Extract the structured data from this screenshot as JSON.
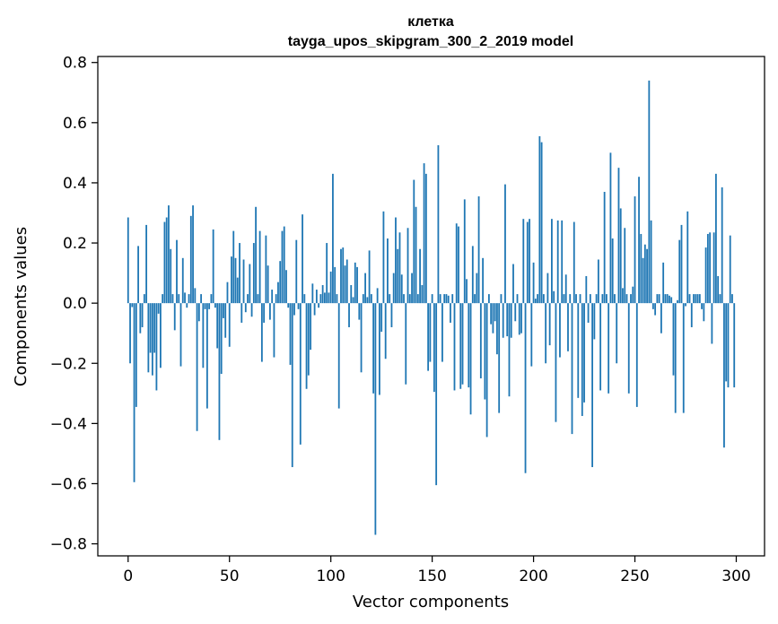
{
  "chart_data": {
    "type": "bar",
    "title": "клетка",
    "subtitle": "tayga_upos_skipgram_300_2_2019 model",
    "xlabel": "Vector components",
    "ylabel": "Components values",
    "xlim": [
      -14.95,
      313.95
    ],
    "ylim": [
      -0.84,
      0.82
    ],
    "xticks": [
      0,
      50,
      100,
      150,
      200,
      250,
      300
    ],
    "xtick_labels": [
      "0",
      "50",
      "100",
      "150",
      "200",
      "250",
      "300"
    ],
    "yticks": [
      -0.8,
      -0.6,
      -0.4,
      -0.2,
      0.0,
      0.2,
      0.4,
      0.6,
      0.8
    ],
    "ytick_labels": [
      "−0.8",
      "−0.6",
      "−0.4",
      "−0.2",
      "0.0",
      "0.2",
      "0.4",
      "0.6",
      "0.8"
    ],
    "grid": false,
    "bar_color": "#1f77b4",
    "x": [
      0,
      1,
      2,
      3,
      4,
      5,
      6,
      7,
      8,
      9,
      10,
      11,
      12,
      13,
      14,
      15,
      16,
      17,
      18,
      19,
      20,
      21,
      22,
      23,
      24,
      25,
      26,
      27,
      28,
      29,
      30,
      31,
      32,
      33,
      34,
      35,
      36,
      37,
      38,
      39,
      40,
      41,
      42,
      43,
      44,
      45,
      46,
      47,
      48,
      49,
      50,
      51,
      52,
      53,
      54,
      55,
      56,
      57,
      58,
      59,
      60,
      61,
      62,
      63,
      64,
      65,
      66,
      67,
      68,
      69,
      70,
      71,
      72,
      73,
      74,
      75,
      76,
      77,
      78,
      79,
      80,
      81,
      82,
      83,
      84,
      85,
      86,
      87,
      88,
      89,
      90,
      91,
      92,
      93,
      94,
      95,
      96,
      97,
      98,
      99,
      100,
      101,
      102,
      103,
      104,
      105,
      106,
      107,
      108,
      109,
      110,
      111,
      112,
      113,
      114,
      115,
      116,
      117,
      118,
      119,
      120,
      121,
      122,
      123,
      124,
      125,
      126,
      127,
      128,
      129,
      130,
      131,
      132,
      133,
      134,
      135,
      136,
      137,
      138,
      139,
      140,
      141,
      142,
      143,
      144,
      145,
      146,
      147,
      148,
      149,
      150,
      151,
      152,
      153,
      154,
      155,
      156,
      157,
      158,
      159,
      160,
      161,
      162,
      163,
      164,
      165,
      166,
      167,
      168,
      169,
      170,
      171,
      172,
      173,
      174,
      175,
      176,
      177,
      178,
      179,
      180,
      181,
      182,
      183,
      184,
      185,
      186,
      187,
      188,
      189,
      190,
      191,
      192,
      193,
      194,
      195,
      196,
      197,
      198,
      199,
      200,
      201,
      202,
      203,
      204,
      205,
      206,
      207,
      208,
      209,
      210,
      211,
      212,
      213,
      214,
      215,
      216,
      217,
      218,
      219,
      220,
      221,
      222,
      223,
      224,
      225,
      226,
      227,
      228,
      229,
      230,
      231,
      232,
      233,
      234,
      235,
      236,
      237,
      238,
      239,
      240,
      241,
      242,
      243,
      244,
      245,
      246,
      247,
      248,
      249,
      250,
      251,
      252,
      253,
      254,
      255,
      256,
      257,
      258,
      259,
      260,
      261,
      262,
      263,
      264,
      265,
      266,
      267,
      268,
      269,
      270,
      271,
      272,
      273,
      274,
      275,
      276,
      277,
      278,
      279,
      280,
      281,
      282,
      283,
      284,
      285,
      286,
      287,
      288,
      289,
      290,
      291,
      292,
      293,
      294,
      295,
      296,
      297,
      298,
      299
    ],
    "values": [
      0.285,
      -0.2,
      -0.013,
      -0.595,
      -0.345,
      0.19,
      -0.1,
      -0.08,
      0.03,
      0.26,
      -0.23,
      -0.165,
      -0.24,
      -0.165,
      -0.29,
      -0.035,
      -0.215,
      0.03,
      0.27,
      0.285,
      0.325,
      0.18,
      0.03,
      -0.09,
      0.21,
      0.03,
      -0.21,
      0.15,
      0.035,
      -0.015,
      0.03,
      0.29,
      0.325,
      0.05,
      -0.425,
      -0.06,
      0.03,
      -0.215,
      -0.02,
      -0.35,
      -0.02,
      0.03,
      0.245,
      -0.015,
      -0.15,
      -0.455,
      -0.235,
      -0.05,
      -0.115,
      0.07,
      -0.145,
      0.155,
      0.24,
      0.15,
      0.085,
      0.2,
      -0.065,
      0.145,
      -0.03,
      0.03,
      0.13,
      -0.045,
      0.2,
      0.32,
      0.03,
      0.24,
      -0.195,
      -0.065,
      0.225,
      0.125,
      -0.055,
      0.045,
      -0.18,
      0.03,
      0.07,
      0.14,
      0.24,
      0.255,
      0.11,
      -0.015,
      -0.205,
      -0.545,
      -0.04,
      0.21,
      -0.02,
      -0.47,
      0.295,
      0.03,
      -0.285,
      -0.24,
      -0.155,
      0.065,
      -0.04,
      0.045,
      -0.015,
      0.03,
      0.06,
      0.035,
      0.2,
      0.035,
      0.105,
      0.43,
      0.12,
      0.03,
      -0.35,
      0.18,
      0.185,
      0.125,
      0.145,
      -0.08,
      0.06,
      0.02,
      0.135,
      0.12,
      -0.055,
      -0.23,
      0.03,
      0.1,
      0.02,
      0.175,
      0.03,
      -0.3,
      -0.77,
      0.05,
      -0.305,
      -0.095,
      0.305,
      -0.185,
      0.215,
      0.03,
      -0.08,
      0.1,
      0.285,
      0.18,
      0.235,
      0.095,
      0.03,
      -0.27,
      0.25,
      0.03,
      0.1,
      0.41,
      0.32,
      0.03,
      0.18,
      0.06,
      0.465,
      0.43,
      -0.225,
      -0.195,
      0.03,
      -0.295,
      -0.605,
      0.525,
      0.03,
      -0.195,
      0.03,
      0.03,
      0.025,
      -0.065,
      0.03,
      -0.29,
      0.265,
      0.255,
      -0.285,
      -0.27,
      0.345,
      0.08,
      -0.28,
      -0.37,
      0.19,
      0.03,
      0.1,
      0.355,
      -0.25,
      0.15,
      -0.32,
      -0.445,
      0.03,
      -0.07,
      -0.1,
      -0.06,
      -0.17,
      -0.365,
      0.03,
      -0.115,
      0.395,
      -0.11,
      -0.31,
      -0.115,
      0.13,
      -0.06,
      0.03,
      -0.105,
      -0.1,
      0.28,
      -0.565,
      0.27,
      0.28,
      -0.21,
      0.135,
      0.015,
      0.03,
      0.555,
      0.535,
      0.03,
      -0.2,
      0.1,
      -0.14,
      0.28,
      0.04,
      -0.395,
      0.275,
      -0.18,
      0.275,
      0.03,
      0.095,
      -0.16,
      0.03,
      -0.435,
      0.27,
      0.03,
      -0.315,
      0.03,
      -0.375,
      -0.33,
      0.09,
      -0.065,
      0.03,
      -0.545,
      -0.12,
      0.03,
      0.145,
      -0.29,
      0.03,
      0.37,
      0.03,
      -0.3,
      0.5,
      0.215,
      0.03,
      -0.2,
      0.45,
      0.315,
      0.05,
      0.25,
      0.03,
      -0.3,
      0.03,
      0.055,
      0.355,
      -0.345,
      0.42,
      0.23,
      0.15,
      0.195,
      0.18,
      0.74,
      0.275,
      -0.02,
      -0.04,
      0.03,
      0.03,
      -0.1,
      0.135,
      0.03,
      0.03,
      0.025,
      0.02,
      -0.24,
      -0.365,
      0.01,
      0.21,
      0.26,
      -0.365,
      -0.01,
      0.305,
      0.03,
      -0.08,
      0.03,
      0.03,
      0.03,
      0.03,
      -0.02,
      -0.06,
      0.185,
      0.23,
      0.235,
      -0.135,
      0.235,
      0.43,
      0.09,
      0.03,
      0.385,
      -0.48,
      -0.26,
      -0.28,
      0.225,
      0.03,
      -0.28
    ]
  }
}
